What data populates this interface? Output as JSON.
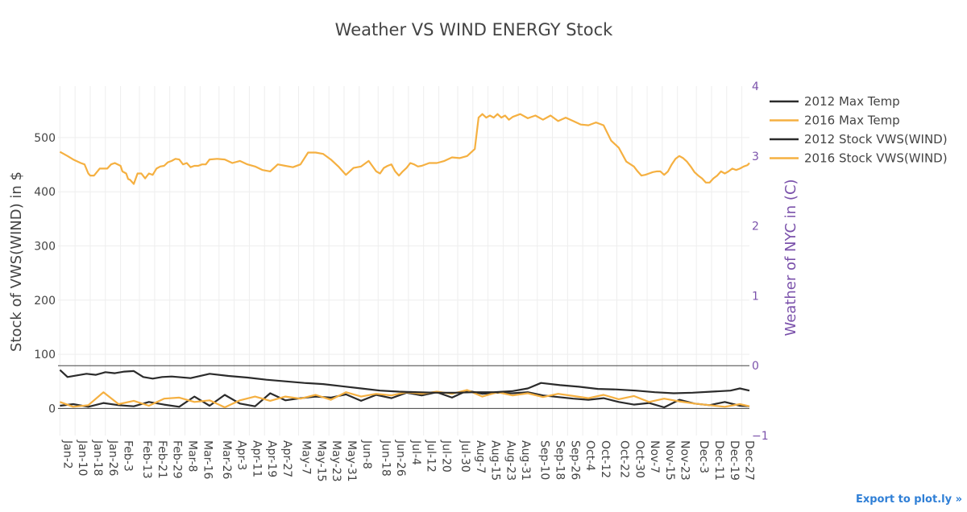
{
  "chart_data": {
    "type": "line",
    "title": "Weather VS WIND ENERGY Stock",
    "ylabel": "Stock of VWS(WIND) in $",
    "y2label": "Weather of NYC in (C)",
    "ylim": [
      -50,
      595
    ],
    "y2lim": [
      -1,
      4
    ],
    "yticks": [
      0,
      100,
      200,
      300,
      400,
      500
    ],
    "y2ticks": [
      -1,
      0,
      1,
      2,
      3,
      4
    ],
    "xlim": [
      0,
      365
    ],
    "x_tick_labels": [
      "Jan-2",
      "Jan-10",
      "Jan-18",
      "Jan-26",
      "Feb-3",
      "Feb-13",
      "Feb-21",
      "Feb-29",
      "Mar-8",
      "Mar-16",
      "Mar-26",
      "Apr-3",
      "Apr-11",
      "Apr-19",
      "Apr-27",
      "May-7",
      "May-15",
      "May-23",
      "May-31",
      "Jun-8",
      "Jun-18",
      "Jun-26",
      "Jul-4",
      "Jul-12",
      "Jul-20",
      "Jul-30",
      "Aug-7",
      "Aug-15",
      "Aug-23",
      "Aug-31",
      "Sep-10",
      "Sep-18",
      "Sep-26",
      "Oct-4",
      "Oct-12",
      "Oct-22",
      "Oct-30",
      "Nov-7",
      "Nov-15",
      "Nov-23",
      "Dec-3",
      "Dec-11",
      "Dec-19",
      "Dec-27"
    ],
    "x_tick_days": [
      1,
      9,
      17,
      25,
      33,
      43,
      51,
      59,
      67,
      75,
      85,
      93,
      101,
      109,
      117,
      127,
      135,
      143,
      151,
      159,
      169,
      177,
      185,
      193,
      201,
      211,
      219,
      227,
      235,
      243,
      253,
      261,
      269,
      277,
      285,
      295,
      303,
      311,
      319,
      327,
      337,
      345,
      353,
      361
    ],
    "grid": true,
    "legend_position": "top-right",
    "series": [
      {
        "name": "2012 Max Temp",
        "axis": "left",
        "color": "#2b2b2b",
        "x": [
          1,
          8,
          16,
          24,
          32,
          40,
          48,
          56,
          64,
          72,
          80,
          88,
          96,
          104,
          112,
          120,
          128,
          136,
          144,
          152,
          160,
          168,
          176,
          184,
          192,
          200,
          208,
          216,
          224,
          232,
          240,
          248,
          256,
          264,
          272,
          280,
          288,
          296,
          304,
          312,
          320,
          328,
          336,
          344,
          352,
          360,
          365
        ],
        "values": [
          5,
          8,
          3,
          10,
          6,
          4,
          12,
          7,
          3,
          22,
          5,
          25,
          9,
          4,
          28,
          15,
          19,
          22,
          20,
          26,
          14,
          25,
          19,
          29,
          24,
          30,
          20,
          33,
          27,
          29,
          28,
          30,
          24,
          21,
          18,
          16,
          19,
          12,
          7,
          10,
          2,
          16,
          9,
          6,
          12,
          5,
          4
        ]
      },
      {
        "name": "2016 Max Temp",
        "axis": "left",
        "color": "#f5b041",
        "x": [
          1,
          8,
          16,
          24,
          32,
          40,
          48,
          56,
          64,
          72,
          80,
          88,
          96,
          104,
          112,
          120,
          128,
          136,
          144,
          152,
          160,
          168,
          176,
          184,
          192,
          200,
          208,
          216,
          224,
          232,
          240,
          248,
          256,
          264,
          272,
          280,
          288,
          296,
          304,
          312,
          320,
          328,
          336,
          344,
          352,
          360,
          365
        ],
        "values": [
          12,
          3,
          6,
          30,
          8,
          14,
          5,
          18,
          20,
          12,
          15,
          2,
          15,
          22,
          14,
          22,
          18,
          25,
          16,
          30,
          22,
          27,
          24,
          30,
          27,
          31,
          27,
          34,
          22,
          30,
          24,
          28,
          21,
          27,
          23,
          19,
          25,
          17,
          23,
          12,
          18,
          13,
          9,
          6,
          3,
          8,
          4
        ]
      },
      {
        "name": "2012 Stock VWS(WIND)",
        "axis": "left",
        "color": "#2b2b2b",
        "x": [
          1,
          5,
          10,
          15,
          20,
          25,
          30,
          35,
          40,
          45,
          50,
          55,
          60,
          70,
          80,
          90,
          100,
          110,
          120,
          130,
          140,
          150,
          160,
          170,
          180,
          190,
          200,
          210,
          220,
          230,
          240,
          248,
          255,
          265,
          275,
          285,
          295,
          305,
          315,
          325,
          335,
          345,
          355,
          360,
          365
        ],
        "values": [
          71,
          58,
          61,
          64,
          62,
          67,
          65,
          68,
          69,
          58,
          55,
          58,
          59,
          56,
          64,
          60,
          57,
          53,
          50,
          47,
          45,
          41,
          37,
          33,
          31,
          30,
          29,
          29,
          30,
          30,
          32,
          37,
          47,
          43,
          40,
          36,
          35,
          33,
          30,
          28,
          29,
          31,
          33,
          37,
          33
        ]
      },
      {
        "name": "2016 Stock VWS(WIND)",
        "axis": "right",
        "color": "#f5b041",
        "x": [
          1,
          3,
          5,
          8,
          12,
          14,
          16,
          17,
          19,
          22,
          26,
          28,
          30,
          33,
          34,
          36,
          37,
          38,
          40,
          42,
          44,
          46,
          48,
          50,
          52,
          54,
          56,
          58,
          60,
          62,
          64,
          66,
          68,
          70,
          72,
          74,
          76,
          78,
          80,
          84,
          88,
          92,
          96,
          100,
          104,
          108,
          112,
          116,
          120,
          124,
          128,
          132,
          136,
          140,
          144,
          148,
          152,
          156,
          160,
          164,
          168,
          170,
          172,
          174,
          176,
          178,
          180,
          182,
          184,
          186,
          188,
          190,
          192,
          196,
          200,
          204,
          208,
          212,
          216,
          220,
          222,
          224,
          226,
          228,
          230,
          232,
          234,
          236,
          238,
          240,
          244,
          248,
          252,
          256,
          260,
          264,
          268,
          272,
          276,
          280,
          284,
          288,
          292,
          296,
          300,
          304,
          306,
          308,
          310,
          312,
          314,
          316,
          318,
          320,
          322,
          324,
          326,
          328,
          330,
          332,
          334,
          336,
          338,
          340,
          342,
          344,
          346,
          348,
          350,
          352,
          354,
          356,
          358,
          360,
          362,
          364,
          365
        ],
        "values": [
          3.06,
          3.03,
          3.0,
          2.95,
          2.9,
          2.88,
          2.75,
          2.72,
          2.72,
          2.82,
          2.82,
          2.88,
          2.9,
          2.86,
          2.78,
          2.75,
          2.67,
          2.66,
          2.6,
          2.75,
          2.75,
          2.68,
          2.75,
          2.73,
          2.82,
          2.85,
          2.86,
          2.91,
          2.93,
          2.96,
          2.95,
          2.88,
          2.9,
          2.84,
          2.86,
          2.86,
          2.88,
          2.88,
          2.95,
          2.96,
          2.95,
          2.9,
          2.93,
          2.88,
          2.85,
          2.8,
          2.78,
          2.88,
          2.86,
          2.84,
          2.88,
          3.05,
          3.05,
          3.03,
          2.95,
          2.85,
          2.73,
          2.83,
          2.85,
          2.93,
          2.78,
          2.75,
          2.83,
          2.86,
          2.88,
          2.78,
          2.72,
          2.78,
          2.83,
          2.9,
          2.88,
          2.85,
          2.86,
          2.9,
          2.9,
          2.93,
          2.98,
          2.97,
          3.0,
          3.1,
          3.55,
          3.6,
          3.55,
          3.58,
          3.55,
          3.6,
          3.55,
          3.58,
          3.52,
          3.56,
          3.6,
          3.54,
          3.58,
          3.52,
          3.58,
          3.5,
          3.55,
          3.5,
          3.45,
          3.44,
          3.48,
          3.44,
          3.22,
          3.12,
          2.92,
          2.85,
          2.78,
          2.72,
          2.73,
          2.75,
          2.77,
          2.78,
          2.78,
          2.73,
          2.78,
          2.88,
          2.96,
          3.0,
          2.97,
          2.92,
          2.85,
          2.77,
          2.72,
          2.68,
          2.62,
          2.62,
          2.68,
          2.72,
          2.78,
          2.75,
          2.78,
          2.82,
          2.8,
          2.82,
          2.85,
          2.87,
          2.9
        ]
      }
    ]
  },
  "export_link": "Export to plot.ly »"
}
